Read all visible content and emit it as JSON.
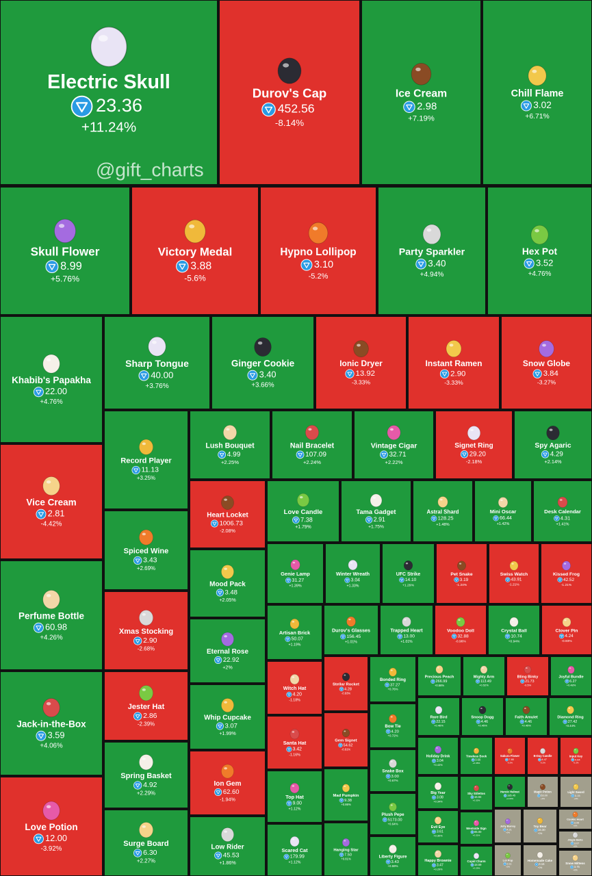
{
  "watermark": "@gift_charts",
  "tiles": [
    {
      "name": "Electric Skull",
      "price": "23.36",
      "change": "+11.24%"
    },
    {
      "name": "Durov's Cap",
      "price": "452.56",
      "change": "-8.14%"
    },
    {
      "name": "Ice Cream",
      "price": "2.98",
      "change": "+7.19%"
    },
    {
      "name": "Chill Flame",
      "price": "3.02",
      "change": "+6.71%"
    },
    {
      "name": "Skull Flower",
      "price": "8.99",
      "change": "+5.76%"
    },
    {
      "name": "Victory Medal",
      "price": "3.88",
      "change": "-5.6%"
    },
    {
      "name": "Hypno Lollipop",
      "price": "3.10",
      "change": "-5.2%"
    },
    {
      "name": "Party Sparkler",
      "price": "3.40",
      "change": "+4.94%"
    },
    {
      "name": "Hex Pot",
      "price": "3.52",
      "change": "+4.76%"
    },
    {
      "name": "Khabib's Papakha",
      "price": "22.00",
      "change": "+4.76%"
    },
    {
      "name": "Vice Cream",
      "price": "2.81",
      "change": "-4.42%"
    },
    {
      "name": "Perfume Bottle",
      "price": "60.98",
      "change": "+4.26%"
    },
    {
      "name": "Jack-in-the-Box",
      "price": "3.59",
      "change": "+4.06%"
    },
    {
      "name": "Love Potion",
      "price": "12.00",
      "change": "-3.92%"
    },
    {
      "name": "Sharp Tongue",
      "price": "40.00",
      "change": "+3.76%"
    },
    {
      "name": "Ginger Cookie",
      "price": "3.40",
      "change": "+3.66%"
    },
    {
      "name": "Ionic Dryer",
      "price": "13.92",
      "change": "-3.33%"
    },
    {
      "name": "Instant Ramen",
      "price": "2.90",
      "change": "-3.33%"
    },
    {
      "name": "Snow Globe",
      "price": "3.84",
      "change": "-3.27%"
    },
    {
      "name": "Record Player",
      "price": "11.13",
      "change": "+3.25%"
    },
    {
      "name": "Spiced Wine",
      "price": "3.43",
      "change": "+2.69%"
    },
    {
      "name": "Xmas Stocking",
      "price": "2.90",
      "change": "-2.68%"
    },
    {
      "name": "Jester Hat",
      "price": "2.86",
      "change": "-2.39%"
    },
    {
      "name": "Spring Basket",
      "price": "4.92",
      "change": "+2.29%"
    },
    {
      "name": "Surge Board",
      "price": "6.30",
      "change": "+2.27%"
    },
    {
      "name": "Lush Bouquet",
      "price": "4.99",
      "change": "+2.25%"
    },
    {
      "name": "Nail Bracelet",
      "price": "107.09",
      "change": "+2.24%"
    },
    {
      "name": "Vintage Cigar",
      "price": "32.71",
      "change": "+2.22%"
    },
    {
      "name": "Signet Ring",
      "price": "29.20",
      "change": "-2.18%"
    },
    {
      "name": "Spy Agaric",
      "price": "4.29",
      "change": "+2.14%"
    },
    {
      "name": "Heart Locket",
      "price": "1006.73",
      "change": "-2.08%"
    },
    {
      "name": "Mood Pack",
      "price": "3.48",
      "change": "+2.05%"
    },
    {
      "name": "Eternal Rose",
      "price": "22.92",
      "change": "+2%"
    },
    {
      "name": "Whip Cupcake",
      "price": "3.07",
      "change": "+1.99%"
    },
    {
      "name": "Ion Gem",
      "price": "62.60",
      "change": "-1.94%"
    },
    {
      "name": "Low Rider",
      "price": "45.53",
      "change": "+1.86%"
    },
    {
      "name": "Love Candle",
      "price": "7.38",
      "change": "+1.79%"
    },
    {
      "name": "Tama Gadget",
      "price": "2.91",
      "change": "+1.75%"
    },
    {
      "name": "Astral Shard",
      "price": "128.25",
      "change": "+1.48%"
    },
    {
      "name": "Mini Oscar",
      "price": "66.44",
      "change": "+1.42%"
    },
    {
      "name": "Desk Calendar",
      "price": "4.31",
      "change": "+1.41%"
    },
    {
      "name": "Genie Lamp",
      "price": "31.27",
      "change": "+1.39%"
    },
    {
      "name": "Winter Wreath",
      "price": "3.04",
      "change": "+1.33%"
    },
    {
      "name": "UFC Strike",
      "price": "14.10",
      "change": "+1.29%"
    },
    {
      "name": "Pet Snake",
      "price": "3.19",
      "change": "-1.24%"
    },
    {
      "name": "Swiss Watch",
      "price": "43.91",
      "change": "-1.21%"
    },
    {
      "name": "Kissed Frog",
      "price": "42.52",
      "change": "-1.21%"
    },
    {
      "name": "Artisan Brick",
      "price": "50.07",
      "change": "+1.19%"
    },
    {
      "name": "Durov's Glasses",
      "price": "156.45",
      "change": "+1.01%"
    },
    {
      "name": "Trapped Heart",
      "price": "13.00",
      "change": "+1.01%"
    },
    {
      "name": "Voodoo Doll",
      "price": "32.88",
      "change": "-0.96%"
    },
    {
      "name": "Crystal Ball",
      "price": "10.74",
      "change": "+0.94%"
    },
    {
      "name": "Clover Pin",
      "price": "4.24",
      "change": "-0.93%"
    },
    {
      "name": "Witch Hat",
      "price": "4.20",
      "change": "-1.18%"
    },
    {
      "name": "Santa Hat",
      "price": "3.42",
      "change": "-1.16%"
    },
    {
      "name": "Top Hat",
      "price": "9.00",
      "change": "+1.12%"
    },
    {
      "name": "Scared Cat",
      "price": "179.99",
      "change": "+1.12%"
    },
    {
      "name": "Stellar Rocket",
      "price": "4.28",
      "change": "-0.93%"
    },
    {
      "name": "Gem Signet",
      "price": "54.62",
      "change": "-0.91%"
    },
    {
      "name": "Mad Pumpkin",
      "price": "9.38",
      "change": "+0.86%"
    },
    {
      "name": "Hanging Star",
      "price": "7.50",
      "change": "+0.81%"
    },
    {
      "name": "Bonded Ring",
      "price": "37.27",
      "change": "+0.76%"
    },
    {
      "name": "Bow Tie",
      "price": "4.20",
      "change": "+0.72%"
    },
    {
      "name": "Snake Box",
      "price": "3.00",
      "change": "+0.67%"
    },
    {
      "name": "Plush Pepe",
      "price": "5173.00",
      "change": "+0.64%"
    },
    {
      "name": "Liberty Figure",
      "price": "3.43",
      "change": "+0.59%"
    },
    {
      "name": "Precious Peach",
      "price": "266.99",
      "change": "+0.56%"
    },
    {
      "name": "Mighty Arm",
      "price": "113.49",
      "change": "+0.52%"
    },
    {
      "name": "Bling Binky",
      "price": "21.73",
      "change": "-0.5%"
    },
    {
      "name": "Joyful Bundle",
      "price": "6.27",
      "change": "+0.48%"
    },
    {
      "name": "Rare Bird",
      "price": "22.15",
      "change": "+0.46%"
    },
    {
      "name": "Snoop Dogg",
      "price": "4.46",
      "change": "+0.45%"
    },
    {
      "name": "Faith Amulet",
      "price": "4.46",
      "change": "+0.45%"
    },
    {
      "name": "Diamond Ring",
      "price": "27.42",
      "change": "+0.44%"
    },
    {
      "name": "Holiday Drink",
      "price": "3.04",
      "change": "+0.43%"
    },
    {
      "name": "Timeless Book",
      "price": "3.60",
      "change": "+0.38%"
    },
    {
      "name": "Sakura Flower",
      "price": "7.80",
      "change": "-0.3%"
    },
    {
      "name": "B-Day Candle",
      "price": "4.47",
      "change": "-0.2%"
    },
    {
      "name": "Input Key",
      "price": "4.94",
      "change": "-0.2%"
    },
    {
      "name": "Big Year",
      "price": "3.08",
      "change": "+0.34%"
    },
    {
      "name": "Evil Eye",
      "price": "3.61",
      "change": "+0.30%"
    },
    {
      "name": "Happy Brownie",
      "price": "3.47",
      "change": "+0.29%"
    },
    {
      "name": "Sky Stilettos",
      "price": "16.94",
      "change": "+0.32%"
    },
    {
      "name": "Westside Sign",
      "price": "85.00",
      "change": "+0.31%"
    },
    {
      "name": "Cupid Charm",
      "price": "18.59",
      "change": "+0.29%"
    },
    {
      "name": "Heroic Helmet",
      "price": "185.45",
      "change": "+0.03%"
    },
    {
      "name": "Magic Potion",
      "price": "53.00",
      "change": "+0%"
    },
    {
      "name": "Light Sword",
      "price": "3.15",
      "change": "+0%"
    },
    {
      "name": "Jelly Bunny",
      "price": "4.21",
      "change": "+0%"
    },
    {
      "name": "Toy Bear",
      "price": "16.30",
      "change": "+0%"
    },
    {
      "name": "Cookie Heart",
      "price": "3.06",
      "change": "+0%"
    },
    {
      "name": "Jingle Bells",
      "price": "3.07",
      "change": "+0%"
    },
    {
      "name": "Lol Pop",
      "price": "3.11",
      "change": "+0%"
    },
    {
      "name": "Homemade Cake",
      "price": "3.16",
      "change": "+0%"
    },
    {
      "name": "Snow Mittens",
      "price": "3.75",
      "change": "+0%"
    }
  ]
}
